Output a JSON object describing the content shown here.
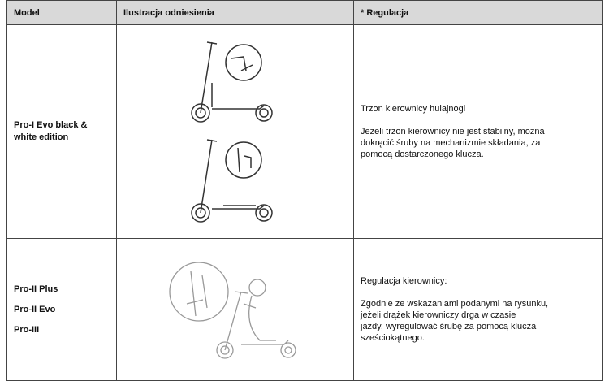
{
  "table": {
    "header": [
      "Model",
      "Ilustracja odniesienia",
      "* Regulacja"
    ],
    "rows": [
      {
        "models": [
          "Pro-I Evo black & white edition"
        ],
        "adjustment": {
          "title": "Trzon kierownicy hulajnogi",
          "lines": [
            "Jeżeli trzon kierownicy nie jest stabilny, można",
            "dokręcić śruby na mechanizmie składania, za",
            "pomocą dostarczonego klucza."
          ]
        }
      },
      {
        "models": [
          "Pro-II Plus",
          "Pro-II Evo",
          "Pro-III"
        ],
        "adjustment": {
          "title": "Regulacja kierownicy:",
          "lines": [
            "Zgodnie ze wskazaniami podanymi na rysunku,",
            "jeżeli drążek kierowniczy drga w czasie",
            "jazdy, wyregulować śrubę za pomocą klucza",
            "sześciokątnego."
          ]
        }
      }
    ]
  }
}
